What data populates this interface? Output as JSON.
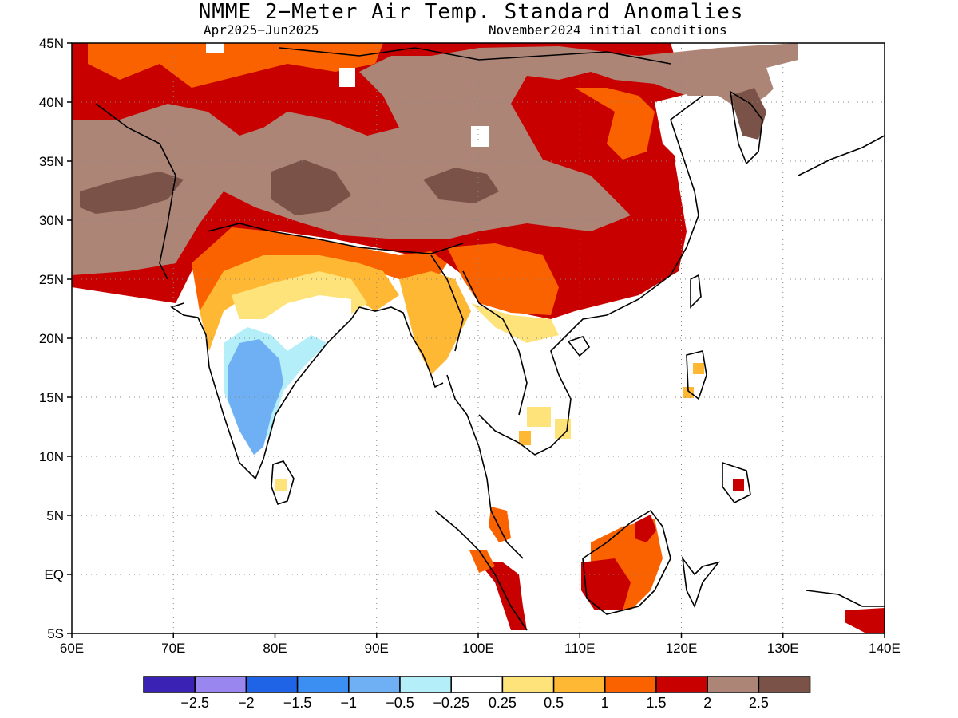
{
  "header": {
    "title": "NMME 2−Meter Air Temp. Standard Anomalies",
    "period": "Apr2025−Jun2025",
    "initial_conditions": "November2024 initial conditions"
  },
  "map": {
    "lon_range": [
      60,
      140
    ],
    "lat_range": [
      -5,
      45
    ],
    "lat_labels": [
      "45N",
      "40N",
      "35N",
      "30N",
      "25N",
      "20N",
      "15N",
      "10N",
      "5N",
      "EQ",
      "5S"
    ],
    "lon_labels": [
      "60E",
      "70E",
      "80E",
      "90E",
      "100E",
      "110E",
      "120E",
      "130E",
      "140E"
    ],
    "gridlines": "dotted"
  },
  "colorbar": {
    "colors": [
      "#3a22b4",
      "#9a86ef",
      "#1f64e6",
      "#3b8ff3",
      "#6fb0f4",
      "#b4eef9",
      "#ffffff",
      "#fee27a",
      "#ffb833",
      "#fa6200",
      "#c80000",
      "#ad8577",
      "#7a5247"
    ],
    "labels": [
      "−2.5",
      "−2",
      "−1.5",
      "−1",
      "−0.5",
      "−0.25",
      "0.25",
      "0.5",
      "1",
      "1.5",
      "2",
      "2.5"
    ]
  },
  "regions": [
    {
      "name": "west-china-mongolia-warm",
      "color": "#ad8577"
    },
    {
      "name": "tibet-very-warm",
      "color": "#7a5247"
    },
    {
      "name": "east-china-warm",
      "color": "#c80000"
    },
    {
      "name": "south-china-warm",
      "color": "#fa6200"
    },
    {
      "name": "northern-india-warm",
      "color": "#ffb833"
    },
    {
      "name": "central-india-cool",
      "color": "#6fb0f4"
    },
    {
      "name": "borneo-warm",
      "color": "#c80000"
    }
  ]
}
